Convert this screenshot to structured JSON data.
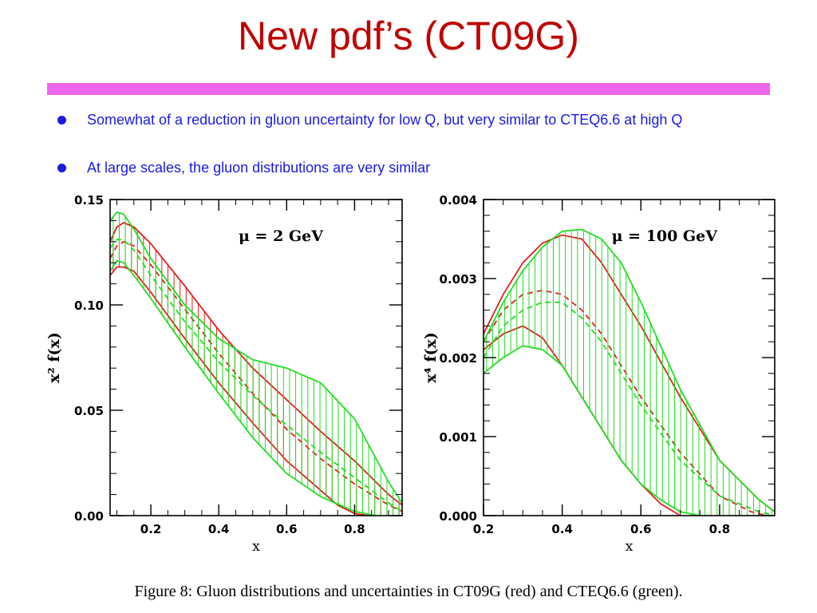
{
  "slide": {
    "title": "New pdf’s (CT09G)",
    "accent_color": "#ee66ee",
    "title_color": "#c00000",
    "text_color": "#1a1ae6"
  },
  "bullets": [
    {
      "text": "Somewhat of a reduction in gluon uncertainty for low Q, but very similar to CTEQ6.6 at high Q"
    },
    {
      "text": "At large scales, the gluon distributions are very similar"
    }
  ],
  "caption": "Figure 8: Gluon distributions and uncertainties in CT09G (red) and CTEQ6.6 (green).",
  "chart_data": [
    {
      "type": "line",
      "annotation": "μ = 2 GeV",
      "xlabel": "x",
      "ylabel": "x² f(x)",
      "xlim": [
        0.08,
        0.94
      ],
      "ylim": [
        0.0,
        0.15
      ],
      "xticks": [
        {
          "value": 0.2,
          "label": "0.2"
        },
        {
          "value": 0.4,
          "label": "0.4"
        },
        {
          "value": 0.6,
          "label": "0.6"
        },
        {
          "value": 0.8,
          "label": "0.8"
        }
      ],
      "yticks": [
        {
          "value": 0.0,
          "label": "0.00"
        },
        {
          "value": 0.05,
          "label": "0.05"
        },
        {
          "value": 0.1,
          "label": "0.10"
        },
        {
          "value": 0.15,
          "label": "0.15"
        }
      ],
      "bands": [
        {
          "color": "#e02020",
          "hatch": true,
          "central_dashed": true,
          "upper": [
            [
              0.08,
              0.13
            ],
            [
              0.1,
              0.137
            ],
            [
              0.12,
              0.139
            ],
            [
              0.15,
              0.137
            ],
            [
              0.2,
              0.129
            ],
            [
              0.3,
              0.109
            ],
            [
              0.4,
              0.088
            ],
            [
              0.5,
              0.07
            ],
            [
              0.6,
              0.055
            ],
            [
              0.7,
              0.04
            ],
            [
              0.8,
              0.026
            ],
            [
              0.9,
              0.01
            ],
            [
              0.94,
              0.005
            ]
          ],
          "central": [
            [
              0.08,
              0.122
            ],
            [
              0.1,
              0.128
            ],
            [
              0.12,
              0.13
            ],
            [
              0.15,
              0.128
            ],
            [
              0.2,
              0.119
            ],
            [
              0.3,
              0.098
            ],
            [
              0.4,
              0.077
            ],
            [
              0.5,
              0.058
            ],
            [
              0.6,
              0.041
            ],
            [
              0.7,
              0.027
            ],
            [
              0.8,
              0.015
            ],
            [
              0.9,
              0.005
            ],
            [
              0.94,
              0.002
            ]
          ],
          "lower": [
            [
              0.08,
              0.114
            ],
            [
              0.1,
              0.118
            ],
            [
              0.12,
              0.118
            ],
            [
              0.15,
              0.116
            ],
            [
              0.2,
              0.106
            ],
            [
              0.3,
              0.084
            ],
            [
              0.4,
              0.063
            ],
            [
              0.5,
              0.044
            ],
            [
              0.6,
              0.026
            ],
            [
              0.7,
              0.012
            ],
            [
              0.75,
              0.005
            ],
            [
              0.8,
              0.001
            ],
            [
              0.84,
              0.0
            ]
          ]
        },
        {
          "color": "#22dd22",
          "hatch": true,
          "central_dashed": true,
          "upper": [
            [
              0.08,
              0.14
            ],
            [
              0.1,
              0.144
            ],
            [
              0.12,
              0.143
            ],
            [
              0.15,
              0.136
            ],
            [
              0.2,
              0.122
            ],
            [
              0.3,
              0.1
            ],
            [
              0.4,
              0.084
            ],
            [
              0.5,
              0.074
            ],
            [
              0.6,
              0.07
            ],
            [
              0.7,
              0.063
            ],
            [
              0.8,
              0.046
            ],
            [
              0.9,
              0.016
            ],
            [
              0.94,
              0.006
            ]
          ],
          "central": [
            [
              0.08,
              0.127
            ],
            [
              0.1,
              0.131
            ],
            [
              0.12,
              0.131
            ],
            [
              0.15,
              0.126
            ],
            [
              0.2,
              0.114
            ],
            [
              0.3,
              0.092
            ],
            [
              0.4,
              0.073
            ],
            [
              0.5,
              0.057
            ],
            [
              0.6,
              0.043
            ],
            [
              0.7,
              0.03
            ],
            [
              0.8,
              0.018
            ],
            [
              0.9,
              0.006
            ],
            [
              0.94,
              0.002
            ]
          ],
          "lower": [
            [
              0.08,
              0.116
            ],
            [
              0.1,
              0.121
            ],
            [
              0.12,
              0.12
            ],
            [
              0.15,
              0.114
            ],
            [
              0.2,
              0.103
            ],
            [
              0.3,
              0.08
            ],
            [
              0.4,
              0.058
            ],
            [
              0.5,
              0.037
            ],
            [
              0.6,
              0.02
            ],
            [
              0.7,
              0.009
            ],
            [
              0.8,
              0.002
            ],
            [
              0.86,
              0.0
            ]
          ]
        }
      ]
    },
    {
      "type": "line",
      "annotation": "μ = 100 GeV",
      "xlabel": "x",
      "ylabel": "x⁴ f(x)",
      "xlim": [
        0.2,
        0.94
      ],
      "ylim": [
        0.0,
        0.004
      ],
      "xticks": [
        {
          "value": 0.2,
          "label": "0.2"
        },
        {
          "value": 0.4,
          "label": "0.4"
        },
        {
          "value": 0.6,
          "label": "0.6"
        },
        {
          "value": 0.8,
          "label": "0.8"
        }
      ],
      "yticks": [
        {
          "value": 0.0,
          "label": "0.000"
        },
        {
          "value": 0.001,
          "label": "0.001"
        },
        {
          "value": 0.002,
          "label": "0.002"
        },
        {
          "value": 0.003,
          "label": "0.003"
        },
        {
          "value": 0.004,
          "label": "0.004"
        }
      ],
      "bands": [
        {
          "color": "#e02020",
          "hatch": true,
          "central_dashed": true,
          "upper": [
            [
              0.2,
              0.0023
            ],
            [
              0.25,
              0.0028
            ],
            [
              0.3,
              0.0032
            ],
            [
              0.35,
              0.00345
            ],
            [
              0.4,
              0.00355
            ],
            [
              0.45,
              0.0035
            ],
            [
              0.5,
              0.0032
            ],
            [
              0.55,
              0.0028
            ],
            [
              0.6,
              0.0024
            ],
            [
              0.7,
              0.0015
            ],
            [
              0.8,
              0.0007
            ],
            [
              0.9,
              0.0002
            ],
            [
              0.94,
              5e-05
            ]
          ],
          "central": [
            [
              0.2,
              0.0022
            ],
            [
              0.25,
              0.0026
            ],
            [
              0.3,
              0.0028
            ],
            [
              0.35,
              0.00285
            ],
            [
              0.4,
              0.0028
            ],
            [
              0.45,
              0.0026
            ],
            [
              0.5,
              0.0023
            ],
            [
              0.55,
              0.0019
            ],
            [
              0.6,
              0.0015
            ],
            [
              0.7,
              0.0008
            ],
            [
              0.8,
              0.00025
            ],
            [
              0.88,
              5e-05
            ],
            [
              0.92,
              0.0
            ]
          ]
        },
        {
          "color": "#e02020",
          "hatch": false,
          "central_dashed": false,
          "lower": [
            [
              0.2,
              0.0021
            ],
            [
              0.25,
              0.0023
            ],
            [
              0.3,
              0.0024
            ],
            [
              0.35,
              0.00225
            ],
            [
              0.4,
              0.0019
            ],
            [
              0.45,
              0.0015
            ],
            [
              0.5,
              0.0011
            ],
            [
              0.55,
              0.0007
            ],
            [
              0.6,
              0.0004
            ],
            [
              0.65,
              0.00015
            ],
            [
              0.7,
              0.0
            ]
          ]
        },
        {
          "color": "#22dd22",
          "hatch": true,
          "central_dashed": true,
          "upper": [
            [
              0.2,
              0.0022
            ],
            [
              0.25,
              0.0027
            ],
            [
              0.3,
              0.0031
            ],
            [
              0.35,
              0.0034
            ],
            [
              0.4,
              0.0036
            ],
            [
              0.45,
              0.00362
            ],
            [
              0.5,
              0.0035
            ],
            [
              0.55,
              0.0032
            ],
            [
              0.6,
              0.0027
            ],
            [
              0.7,
              0.0016
            ],
            [
              0.8,
              0.0007
            ],
            [
              0.9,
              0.0002
            ],
            [
              0.94,
              5e-05
            ]
          ],
          "central": [
            [
              0.2,
              0.002
            ],
            [
              0.25,
              0.0024
            ],
            [
              0.3,
              0.0026
            ],
            [
              0.35,
              0.0027
            ],
            [
              0.4,
              0.0027
            ],
            [
              0.45,
              0.0025
            ],
            [
              0.5,
              0.0022
            ],
            [
              0.55,
              0.0018
            ],
            [
              0.6,
              0.0014
            ],
            [
              0.7,
              0.0007
            ],
            [
              0.8,
              0.00025
            ],
            [
              0.9,
              5e-05
            ],
            [
              0.94,
              0.0
            ]
          ],
          "lower": [
            [
              0.2,
              0.0018
            ],
            [
              0.25,
              0.002
            ],
            [
              0.3,
              0.00215
            ],
            [
              0.35,
              0.0021
            ],
            [
              0.4,
              0.0019
            ],
            [
              0.45,
              0.0015
            ],
            [
              0.5,
              0.0011
            ],
            [
              0.55,
              0.0007
            ],
            [
              0.6,
              0.0004
            ],
            [
              0.65,
              0.0002
            ],
            [
              0.7,
              5e-05
            ],
            [
              0.75,
              0.0
            ]
          ]
        }
      ]
    }
  ]
}
